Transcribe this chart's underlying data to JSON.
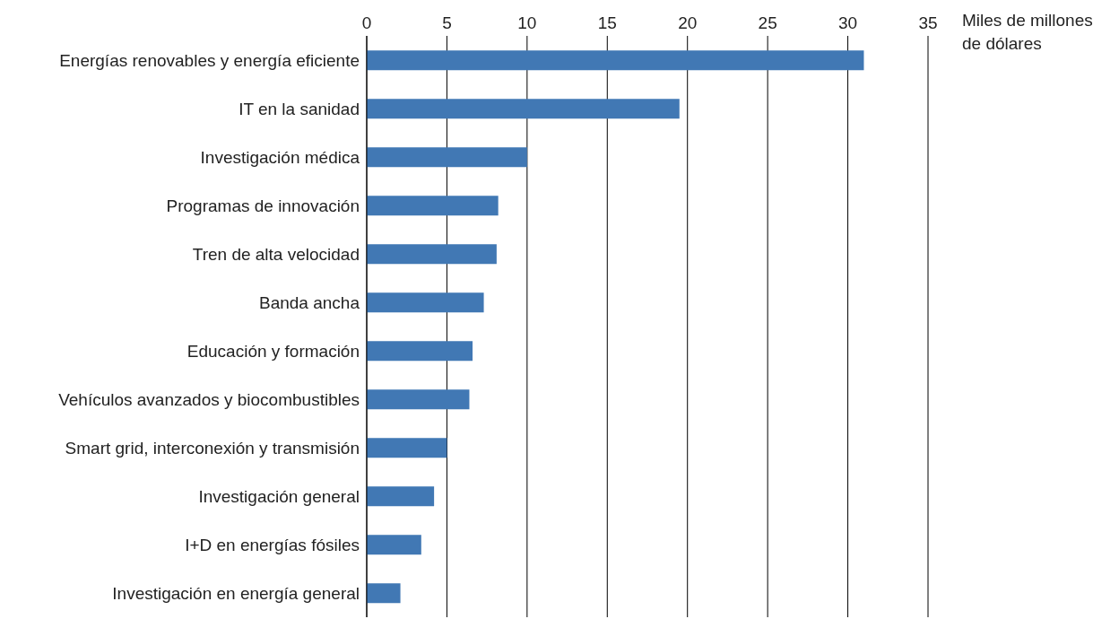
{
  "chart_data": {
    "type": "bar",
    "orientation": "horizontal",
    "xlabel": "Miles de millones de dólares",
    "categories": [
      "Energías renovables y energía eficiente",
      "IT en la sanidad",
      "Investigación médica",
      "Programas de innovación",
      "Tren de alta velocidad",
      "Banda ancha",
      "Educación y formación",
      "Vehículos avanzados y biocombustibles",
      "Smart grid, interconexión y transmisión",
      "Investigación general",
      "I+D en energías fósiles",
      "Investigación en energía general"
    ],
    "values": [
      31,
      19.5,
      10,
      8.2,
      8.1,
      7.3,
      6.6,
      6.4,
      5,
      4.2,
      3.4,
      2.1
    ],
    "color": "#4178b4",
    "xlim": [
      0,
      35
    ],
    "xticks": [
      0,
      5,
      10,
      15,
      20,
      25,
      30,
      35
    ],
    "grid": "x"
  }
}
